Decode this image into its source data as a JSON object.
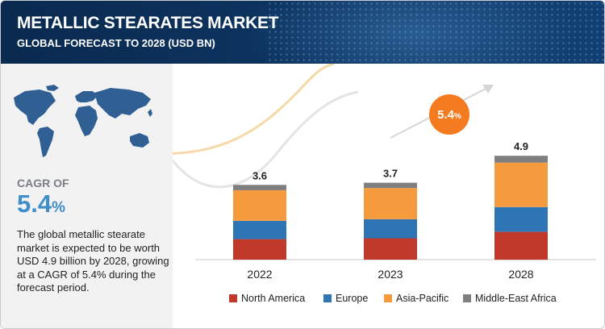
{
  "header": {
    "title": "METALLIC STEARATES MARKET",
    "subtitle": "GLOBAL FORECAST TO 2028 (USD BN)"
  },
  "sidebar": {
    "cagr_label": "CAGR OF",
    "cagr_value": "5.4",
    "cagr_unit": "%",
    "summary": "The global metallic stearate market is expected to be worth USD 4.9 billion by 2028, growing at a CAGR of 5.4% during the forecast period."
  },
  "badge": {
    "value": "5.4",
    "unit": "%"
  },
  "colors": {
    "North America": "#c0392b",
    "Europe": "#2e75b6",
    "Asia-Pacific": "#f59b3d",
    "Middle-East Africa": "#7f7f7f",
    "accent": "#3f8ec9",
    "badge": "#f47b20"
  },
  "chart_data": {
    "type": "bar",
    "stacked": true,
    "categories": [
      "2022",
      "2023",
      "2028"
    ],
    "totals": [
      "3.6",
      "3.7",
      "4.9"
    ],
    "series": [
      {
        "name": "North America",
        "values": [
          0.96,
          1.0,
          1.3
        ]
      },
      {
        "name": "Europe",
        "values": [
          0.86,
          0.89,
          1.16
        ]
      },
      {
        "name": "Asia-Pacific",
        "values": [
          1.43,
          1.46,
          2.08
        ]
      },
      {
        "name": "Middle-East Africa",
        "values": [
          0.25,
          0.25,
          0.32
        ]
      }
    ],
    "legend_position": "bottom"
  }
}
